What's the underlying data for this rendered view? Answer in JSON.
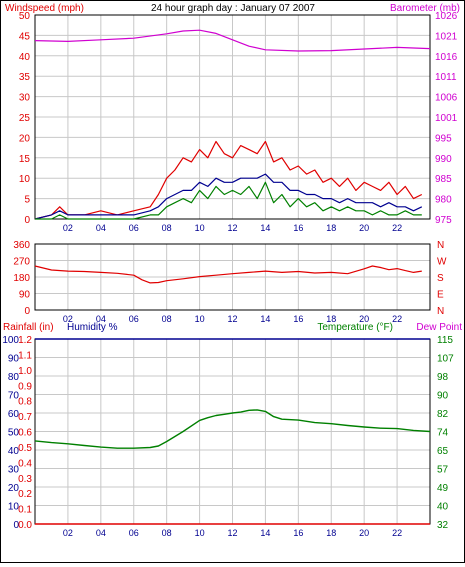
{
  "colors": {
    "red": "#e00000",
    "magenta": "#d000d0",
    "navy": "#000090",
    "green": "#008000",
    "grid": "#c8c8c8"
  },
  "chart_data": [
    {
      "type": "line",
      "title": "24 hour graph day : January 07 2007",
      "ylabel_left": "Windspeed (mph)",
      "ylabel_right": "Barometer (mb)",
      "x_ticks": [
        "02",
        "04",
        "06",
        "08",
        "10",
        "12",
        "14",
        "16",
        "18",
        "20",
        "22"
      ],
      "left_ticks": [
        "0",
        "5",
        "10",
        "15",
        "20",
        "25",
        "30",
        "35",
        "40",
        "45",
        "50"
      ],
      "right_ticks": [
        "975",
        "980",
        "985",
        "990",
        "995",
        "1001",
        "1006",
        "1011",
        "1016",
        "1021",
        "1026"
      ],
      "ylim_left": [
        0,
        50
      ],
      "ylim_right": [
        975,
        1026
      ],
      "xlim": [
        0,
        24
      ],
      "grid": true,
      "series": [
        {
          "role": "barometer",
          "axis": "right",
          "color": "#d000d0",
          "x": [
            0,
            2,
            4,
            6,
            8,
            9,
            10,
            11,
            12,
            13,
            14,
            16,
            18,
            20,
            22,
            24
          ],
          "y": [
            1019.6,
            1019.4,
            1019.8,
            1020.2,
            1021.3,
            1022.0,
            1022.2,
            1021.4,
            1019.8,
            1018.2,
            1017.3,
            1017.0,
            1017.1,
            1017.5,
            1017.9,
            1017.6
          ]
        },
        {
          "role": "gust",
          "axis": "left",
          "color": "#e00000",
          "x": [
            0,
            1,
            1.5,
            2,
            3,
            4,
            5,
            6,
            7,
            7.5,
            8,
            8.5,
            9,
            9.5,
            10,
            10.5,
            11,
            11.5,
            12,
            12.5,
            13,
            13.5,
            14,
            14.5,
            15,
            15.5,
            16,
            16.5,
            17,
            17.5,
            18,
            18.5,
            19,
            19.5,
            20,
            20.5,
            21,
            21.5,
            22,
            22.5,
            23,
            23.5
          ],
          "y": [
            0,
            1,
            3,
            1,
            1,
            2,
            1,
            2,
            3,
            6,
            10,
            12,
            15,
            14,
            17,
            15,
            19,
            16,
            15,
            18,
            17,
            16,
            19,
            14,
            15,
            12,
            13,
            11,
            12,
            9,
            10,
            8,
            10,
            7,
            9,
            8,
            7,
            9,
            6,
            8,
            5,
            6
          ]
        },
        {
          "role": "average",
          "axis": "left",
          "color": "#000090",
          "x": [
            0,
            1,
            1.5,
            2,
            3,
            4,
            5,
            6,
            7,
            7.5,
            8,
            8.5,
            9,
            9.5,
            10,
            10.5,
            11,
            11.5,
            12,
            12.5,
            13,
            13.5,
            14,
            14.5,
            15,
            15.5,
            16,
            16.5,
            17,
            17.5,
            18,
            18.5,
            19,
            19.5,
            20,
            20.5,
            21,
            21.5,
            22,
            22.5,
            23,
            23.5
          ],
          "y": [
            0,
            1,
            2,
            1,
            1,
            1,
            1,
            1,
            2,
            3,
            5,
            6,
            7,
            7,
            9,
            8,
            10,
            9,
            9,
            10,
            10,
            10,
            11,
            9,
            9,
            7,
            7,
            6,
            6,
            5,
            5,
            4,
            5,
            4,
            4,
            4,
            3,
            4,
            3,
            3,
            2,
            3
          ]
        },
        {
          "role": "wind",
          "axis": "left",
          "color": "#008000",
          "x": [
            0,
            1,
            1.5,
            2,
            3,
            4,
            5,
            6,
            7,
            7.5,
            8,
            8.5,
            9,
            9.5,
            10,
            10.5,
            11,
            11.5,
            12,
            12.5,
            13,
            13.5,
            14,
            14.5,
            15,
            15.5,
            16,
            16.5,
            17,
            17.5,
            18,
            18.5,
            19,
            19.5,
            20,
            20.5,
            21,
            21.5,
            22,
            22.5,
            23,
            23.5
          ],
          "y": [
            0,
            0,
            1,
            0,
            0,
            0,
            0,
            0,
            1,
            1,
            3,
            4,
            5,
            4,
            7,
            5,
            8,
            6,
            7,
            6,
            8,
            5,
            9,
            4,
            6,
            3,
            5,
            3,
            4,
            2,
            3,
            2,
            3,
            2,
            2,
            1,
            2,
            1,
            1,
            2,
            1,
            1
          ]
        }
      ]
    },
    {
      "type": "line",
      "x_ticks": [
        "02",
        "04",
        "06",
        "08",
        "10",
        "12",
        "14",
        "16",
        "18",
        "20",
        "22"
      ],
      "left_ticks": [
        "0",
        "90",
        "180",
        "270",
        "360"
      ],
      "right_labels": [
        "N",
        "W",
        "S",
        "E",
        "N"
      ],
      "ylim": [
        0,
        360
      ],
      "xlim": [
        0,
        24
      ],
      "grid": true,
      "series": [
        {
          "role": "wind-direction",
          "color": "#e00000",
          "x": [
            0,
            1,
            2,
            3,
            4,
            5,
            6,
            6.5,
            7,
            7.5,
            8,
            9,
            10,
            11,
            12,
            13,
            14,
            15,
            16,
            17,
            18,
            19,
            20,
            20.5,
            21,
            21.5,
            22,
            22.5,
            23,
            23.5
          ],
          "y": [
            240,
            218,
            212,
            210,
            205,
            200,
            190,
            165,
            148,
            150,
            160,
            170,
            182,
            190,
            198,
            205,
            212,
            205,
            210,
            202,
            205,
            198,
            225,
            240,
            232,
            220,
            226,
            215,
            205,
            212
          ]
        }
      ]
    },
    {
      "type": "line",
      "ylabel_left_1": "Rainfall (in)",
      "ylabel_left_2": "Humidity %",
      "ylabel_right_1": "Temperature (°F)",
      "ylabel_right_2": "Dew Point",
      "x_ticks": [
        "02",
        "04",
        "06",
        "08",
        "10",
        "12",
        "14",
        "16",
        "18",
        "20",
        "22"
      ],
      "humidity_ticks": [
        "0",
        "10",
        "20",
        "30",
        "40",
        "50",
        "60",
        "70",
        "80",
        "90",
        "100"
      ],
      "rain_ticks": [
        "0.0",
        "0.1",
        "0.2",
        "0.3",
        "0.4",
        "0.5",
        "0.6",
        "0.7",
        "0.8",
        "0.9",
        "1.0",
        "1.1",
        "1.2"
      ],
      "temp_ticks": [
        "32",
        "40",
        "49",
        "57",
        "65",
        "74",
        "82",
        "90",
        "98",
        "107",
        "115"
      ],
      "ylim_humidity": [
        0,
        100
      ],
      "ylim_rain": [
        0,
        1.2
      ],
      "ylim_temp": [
        32,
        115
      ],
      "xlim": [
        0,
        24
      ],
      "grid": true,
      "series": [
        {
          "role": "humidity",
          "axis": "humidity",
          "color": "#000090",
          "x": [
            0,
            24
          ],
          "y": [
            100,
            100
          ]
        },
        {
          "role": "rainfall",
          "axis": "rain",
          "color": "#e00000",
          "x": [
            0,
            24
          ],
          "y": [
            0,
            0
          ]
        },
        {
          "role": "temperature",
          "axis": "temp",
          "color": "#008000",
          "x": [
            0,
            1,
            2,
            3,
            4,
            5,
            6,
            7,
            7.5,
            8,
            9,
            10,
            10.5,
            11,
            11.5,
            12,
            12.5,
            13,
            13.5,
            14,
            14.5,
            15,
            16,
            17,
            18,
            19,
            20,
            21,
            22,
            23,
            24
          ],
          "y": [
            69.3,
            68.5,
            68.0,
            67.2,
            66.5,
            66.0,
            66.0,
            66.3,
            67.0,
            69.0,
            73.5,
            78.5,
            79.7,
            80.7,
            81.2,
            81.8,
            82.2,
            83.0,
            83.2,
            82.5,
            80.2,
            79.0,
            78.6,
            77.5,
            77.0,
            76.2,
            75.5,
            75.0,
            74.8,
            74.0,
            73.5
          ]
        }
      ]
    }
  ]
}
